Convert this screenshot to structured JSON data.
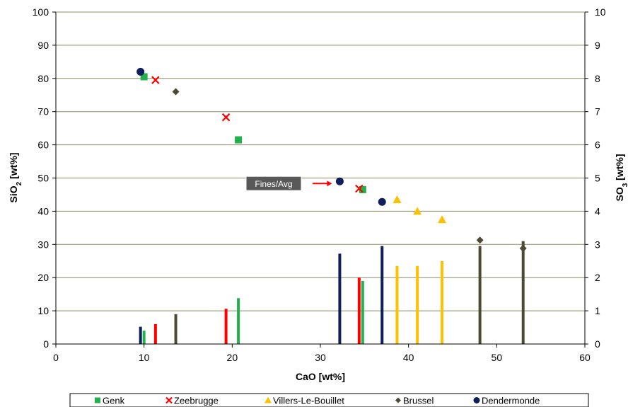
{
  "chart_data": {
    "type": "scatter",
    "xlabel": "CaO [wt%]",
    "ylabel_main": "SiO",
    "ylabel_sub": "2",
    "ylabel_tail": " [wt%]",
    "y2label_main": "SO",
    "y2label_sub": "3",
    "y2label_tail": " [wt%]",
    "xlim": [
      0,
      60
    ],
    "ylim": [
      0,
      100
    ],
    "y2lim": [
      0,
      10
    ],
    "x_ticks": [
      "0",
      "10",
      "20",
      "30",
      "40",
      "50",
      "60"
    ],
    "y_ticks": [
      "0",
      "10",
      "20",
      "30",
      "40",
      "50",
      "60",
      "70",
      "80",
      "90",
      "100"
    ],
    "y2_ticks": [
      "0",
      "1",
      "2",
      "3",
      "4",
      "5",
      "6",
      "7",
      "8",
      "9",
      "10"
    ],
    "grid": "horizontal",
    "legend_position": "bottom",
    "annotation": {
      "text": "Fines/Avg",
      "points_to": [
        32.2,
        49
      ]
    },
    "series": [
      {
        "name": "Genk",
        "marker": "square",
        "color": "#22B14C",
        "points": [
          [
            10,
            80.5
          ],
          [
            20.7,
            61.5
          ],
          [
            34.8,
            46.5
          ]
        ],
        "so3": [
          [
            10,
            0.4
          ],
          [
            20.7,
            1.38
          ],
          [
            34.8,
            1.9
          ]
        ]
      },
      {
        "name": "Zeebrugge",
        "marker": "x",
        "color": "#FF0000",
        "points": [
          [
            11.3,
            79.5
          ],
          [
            19.3,
            68.3
          ],
          [
            34.4,
            46.8
          ]
        ],
        "so3": [
          [
            11.3,
            0.6
          ],
          [
            19.3,
            1.06
          ],
          [
            34.4,
            2.0
          ]
        ]
      },
      {
        "name": "Villers-Le-Bouillet",
        "marker": "triangle",
        "color": "#FFC000",
        "points": [
          [
            38.7,
            43.5
          ],
          [
            41,
            40
          ],
          [
            43.8,
            37.5
          ]
        ],
        "so3": [
          [
            38.7,
            2.35
          ],
          [
            41,
            2.35
          ],
          [
            43.8,
            2.5
          ]
        ]
      },
      {
        "name": "Brussel",
        "marker": "diamond",
        "color": "#4D4A34",
        "points": [
          [
            13.6,
            76
          ],
          [
            48.1,
            31.3
          ],
          [
            53,
            28.8
          ]
        ],
        "so3": [
          [
            13.6,
            0.9
          ],
          [
            48.1,
            2.95
          ],
          [
            53,
            3.1
          ]
        ]
      },
      {
        "name": "Dendermonde",
        "marker": "circle",
        "color": "#0F1F5C",
        "points": [
          [
            9.6,
            82
          ],
          [
            32.2,
            49
          ],
          [
            37,
            42.8
          ]
        ],
        "so3": [
          [
            9.6,
            0.52
          ],
          [
            32.2,
            2.72
          ],
          [
            37,
            2.95
          ]
        ]
      }
    ]
  }
}
